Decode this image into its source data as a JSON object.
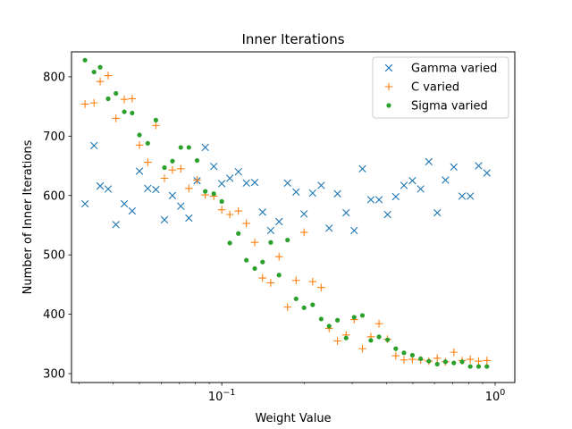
{
  "chart_data": {
    "type": "scatter",
    "title": "Inner Iterations",
    "xlabel": "Weight Value",
    "ylabel": "Number of Inner Iterations",
    "x_scale": "log",
    "xlim": [
      0.0282,
      1.18
    ],
    "ylim": [
      285,
      842
    ],
    "x_ticks": [
      {
        "value": 0.1,
        "label": "10^-1"
      },
      {
        "value": 1.0,
        "label": "10^0"
      }
    ],
    "y_ticks": [
      300,
      400,
      500,
      600,
      700,
      800
    ],
    "grid": false,
    "legend_position": "top-right",
    "series": [
      {
        "name": "Gamma varied",
        "marker": "x",
        "color": "#1f77b4",
        "points": [
          [
            0.0316,
            586
          ],
          [
            0.0341,
            684
          ],
          [
            0.0359,
            616
          ],
          [
            0.0384,
            611
          ],
          [
            0.041,
            551
          ],
          [
            0.044,
            586
          ],
          [
            0.047,
            574
          ],
          [
            0.05,
            641
          ],
          [
            0.0536,
            612
          ],
          [
            0.0574,
            610
          ],
          [
            0.0617,
            559
          ],
          [
            0.066,
            600
          ],
          [
            0.0708,
            582
          ],
          [
            0.0758,
            562
          ],
          [
            0.0812,
            625
          ],
          [
            0.087,
            681
          ],
          [
            0.0935,
            649
          ],
          [
            0.1,
            620
          ],
          [
            0.107,
            629
          ],
          [
            0.115,
            640
          ],
          [
            0.123,
            621
          ],
          [
            0.132,
            622
          ],
          [
            0.141,
            572
          ],
          [
            0.151,
            541
          ],
          [
            0.162,
            556
          ],
          [
            0.174,
            621
          ],
          [
            0.187,
            606
          ],
          [
            0.2,
            569
          ],
          [
            0.215,
            604
          ],
          [
            0.231,
            617
          ],
          [
            0.247,
            545
          ],
          [
            0.265,
            603
          ],
          [
            0.285,
            571
          ],
          [
            0.305,
            541
          ],
          [
            0.327,
            645
          ],
          [
            0.351,
            593
          ],
          [
            0.376,
            593
          ],
          [
            0.404,
            568
          ],
          [
            0.433,
            598
          ],
          [
            0.464,
            617
          ],
          [
            0.498,
            625
          ],
          [
            0.534,
            611
          ],
          [
            0.572,
            657
          ],
          [
            0.614,
            571
          ],
          [
            0.658,
            626
          ],
          [
            0.706,
            648
          ],
          [
            0.757,
            599
          ],
          [
            0.811,
            599
          ],
          [
            0.87,
            650
          ],
          [
            0.933,
            638
          ]
        ]
      },
      {
        "name": "C varied",
        "marker": "+",
        "color": "#ff7f0e",
        "points": [
          [
            0.0316,
            754
          ],
          [
            0.0341,
            756
          ],
          [
            0.0359,
            792
          ],
          [
            0.0384,
            802
          ],
          [
            0.041,
            730
          ],
          [
            0.044,
            762
          ],
          [
            0.047,
            763
          ],
          [
            0.05,
            685
          ],
          [
            0.0536,
            656
          ],
          [
            0.0574,
            718
          ],
          [
            0.0617,
            629
          ],
          [
            0.066,
            643
          ],
          [
            0.0708,
            645
          ],
          [
            0.0758,
            612
          ],
          [
            0.0812,
            626
          ],
          [
            0.087,
            601
          ],
          [
            0.0935,
            599
          ],
          [
            0.1,
            576
          ],
          [
            0.107,
            568
          ],
          [
            0.115,
            574
          ],
          [
            0.123,
            553
          ],
          [
            0.132,
            521
          ],
          [
            0.141,
            461
          ],
          [
            0.151,
            453
          ],
          [
            0.162,
            497
          ],
          [
            0.174,
            412
          ],
          [
            0.187,
            457
          ],
          [
            0.2,
            538
          ],
          [
            0.215,
            455
          ],
          [
            0.231,
            445
          ],
          [
            0.247,
            376
          ],
          [
            0.265,
            355
          ],
          [
            0.285,
            365
          ],
          [
            0.305,
            391
          ],
          [
            0.327,
            342
          ],
          [
            0.351,
            362
          ],
          [
            0.376,
            384
          ],
          [
            0.404,
            358
          ],
          [
            0.433,
            330
          ],
          [
            0.464,
            323
          ],
          [
            0.498,
            324
          ],
          [
            0.534,
            323
          ],
          [
            0.572,
            321
          ],
          [
            0.614,
            326
          ],
          [
            0.658,
            320
          ],
          [
            0.706,
            336
          ],
          [
            0.757,
            322
          ],
          [
            0.811,
            324
          ],
          [
            0.87,
            321
          ],
          [
            0.933,
            322
          ]
        ]
      },
      {
        "name": "Sigma varied",
        "marker": "o",
        "color": "#2ca02c",
        "points": [
          [
            0.0316,
            828
          ],
          [
            0.0341,
            808
          ],
          [
            0.0359,
            816
          ],
          [
            0.0384,
            763
          ],
          [
            0.041,
            772
          ],
          [
            0.044,
            741
          ],
          [
            0.047,
            739
          ],
          [
            0.05,
            702
          ],
          [
            0.0536,
            688
          ],
          [
            0.0574,
            727
          ],
          [
            0.0617,
            647
          ],
          [
            0.066,
            658
          ],
          [
            0.0708,
            681
          ],
          [
            0.0758,
            681
          ],
          [
            0.0812,
            659
          ],
          [
            0.087,
            607
          ],
          [
            0.0935,
            603
          ],
          [
            0.1,
            590
          ],
          [
            0.107,
            520
          ],
          [
            0.115,
            536
          ],
          [
            0.123,
            491
          ],
          [
            0.132,
            477
          ],
          [
            0.141,
            488
          ],
          [
            0.151,
            521
          ],
          [
            0.162,
            466
          ],
          [
            0.174,
            525
          ],
          [
            0.187,
            426
          ],
          [
            0.2,
            411
          ],
          [
            0.215,
            416
          ],
          [
            0.231,
            392
          ],
          [
            0.247,
            380
          ],
          [
            0.265,
            390
          ],
          [
            0.285,
            360
          ],
          [
            0.305,
            395
          ],
          [
            0.327,
            398
          ],
          [
            0.351,
            356
          ],
          [
            0.376,
            362
          ],
          [
            0.404,
            357
          ],
          [
            0.433,
            342
          ],
          [
            0.464,
            335
          ],
          [
            0.498,
            331
          ],
          [
            0.534,
            325
          ],
          [
            0.572,
            321
          ],
          [
            0.614,
            316
          ],
          [
            0.658,
            320
          ],
          [
            0.706,
            318
          ],
          [
            0.757,
            320
          ],
          [
            0.811,
            312
          ],
          [
            0.87,
            312
          ],
          [
            0.933,
            312
          ]
        ]
      }
    ]
  }
}
